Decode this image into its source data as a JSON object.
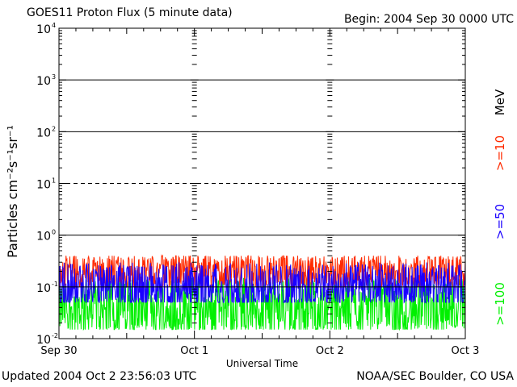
{
  "header": {
    "title": "GOES11 Proton Flux (5 minute data)",
    "begin": "Begin: 2004 Sep 30 0000 UTC"
  },
  "footer": {
    "updated": "Updated 2004 Oct  2 23:56:03 UTC",
    "source": "NOAA/SEC Boulder, CO USA"
  },
  "colors": {
    "ge10": "#ff2a00",
    "ge50": "#1a00ff",
    "ge100": "#00f000",
    "axis": "#000000"
  },
  "chart_data": {
    "type": "line",
    "xlabel": "Universal Time",
    "ylabel": "Particles cm⁻²s⁻¹sr⁻¹",
    "yscale": "log",
    "ylim": [
      0.01,
      10000
    ],
    "xlim": [
      "2004-09-30 00:00",
      "2004-10-03 00:00"
    ],
    "x_ticks": [
      "Sep 30",
      "Oct 1",
      "Oct 2",
      "Oct 3"
    ],
    "y_ticks": [
      {
        "base": "10",
        "exp": "-2"
      },
      {
        "base": "10",
        "exp": "-1"
      },
      {
        "base": "10",
        "exp": "0"
      },
      {
        "base": "10",
        "exp": "1"
      },
      {
        "base": "10",
        "exp": "2"
      },
      {
        "base": "10",
        "exp": "3"
      },
      {
        "base": "10",
        "exp": "4"
      }
    ],
    "threshold_line": 10,
    "units_label": "MeV",
    "series": [
      {
        "name": ">=10",
        "color": "#ff2a00",
        "min": 0.1,
        "max": 0.4,
        "typical": 0.2
      },
      {
        "name": ">=50",
        "color": "#1a00ff",
        "min": 0.05,
        "max": 0.3,
        "typical": 0.1
      },
      {
        "name": ">=100",
        "color": "#00f000",
        "min": 0.015,
        "max": 0.15,
        "typical": 0.04
      }
    ],
    "grid": true,
    "legend": "right, rotated"
  }
}
